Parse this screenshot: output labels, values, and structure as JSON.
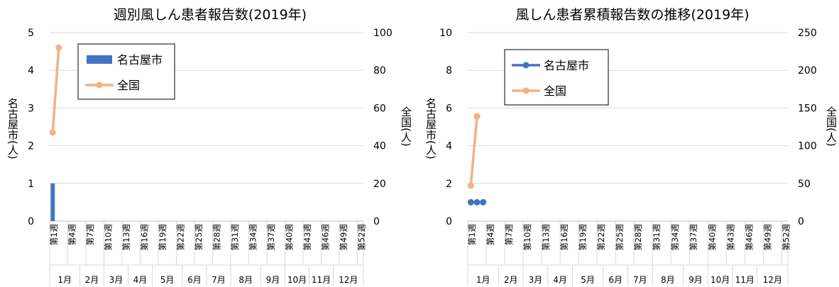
{
  "chart_data": [
    {
      "type": "bar+line",
      "title": "週別風しん患者報告数(2019年)",
      "ylabel_left": "名古屋市(人)",
      "ylabel_right": "全国(人)",
      "ylim_left": [
        0,
        5
      ],
      "ylim_right": [
        0,
        100
      ],
      "yticks_left": [
        "0",
        "1",
        "2",
        "3",
        "4",
        "5"
      ],
      "yticks_right": [
        "0",
        "20",
        "40",
        "60",
        "80",
        "100"
      ],
      "x_tick_labels": [
        "第1週",
        "第4週",
        "第7週",
        "第10週",
        "第13週",
        "第16週",
        "第19週",
        "第22週",
        "第25週",
        "第28週",
        "第31週",
        "第34週",
        "第37週",
        "第40週",
        "第43週",
        "第46週",
        "第49週",
        "第52週"
      ],
      "months": [
        "1月",
        "2月",
        "3月",
        "4月",
        "5月",
        "6月",
        "7月",
        "8月",
        "9月",
        "10月",
        "11月",
        "12月"
      ],
      "legend": [
        "名古屋市",
        "全国"
      ],
      "legend_position": "top-left",
      "series": [
        {
          "name": "名古屋市",
          "kind": "bar",
          "axis": "left",
          "color": "#4472C4",
          "x": [
            1
          ],
          "values": [
            1
          ]
        },
        {
          "name": "全国",
          "kind": "line",
          "axis": "right",
          "color": "#F4B183",
          "x": [
            1,
            2
          ],
          "values": [
            47,
            92
          ]
        }
      ]
    },
    {
      "type": "line",
      "title": "風しん患者累積報告数の推移(2019年)",
      "ylabel_left": "名古屋市(人)",
      "ylabel_right": "全国(人)",
      "ylim_left": [
        0,
        10
      ],
      "ylim_right": [
        0,
        250
      ],
      "yticks_left": [
        "0",
        "2",
        "4",
        "6",
        "8",
        "10"
      ],
      "yticks_right": [
        "0",
        "50",
        "100",
        "150",
        "200",
        "250"
      ],
      "x_tick_labels": [
        "第1週",
        "第4週",
        "第7週",
        "第10週",
        "第13週",
        "第16週",
        "第19週",
        "第22週",
        "第25週",
        "第28週",
        "第31週",
        "第34週",
        "第37週",
        "第40週",
        "第43週",
        "第46週",
        "第49週",
        "第52週"
      ],
      "months": [
        "1月",
        "2月",
        "3月",
        "4月",
        "5月",
        "6月",
        "7月",
        "8月",
        "9月",
        "10月",
        "11月",
        "12月"
      ],
      "legend": [
        "名古屋市",
        "全国"
      ],
      "legend_position": "top-left",
      "series": [
        {
          "name": "名古屋市",
          "kind": "line",
          "axis": "left",
          "color": "#4472C4",
          "x": [
            1,
            2,
            3
          ],
          "values": [
            1,
            1,
            1
          ]
        },
        {
          "name": "全国",
          "kind": "line",
          "axis": "right",
          "color": "#F4B183",
          "x": [
            1,
            2
          ],
          "values": [
            47,
            139
          ]
        }
      ]
    }
  ]
}
